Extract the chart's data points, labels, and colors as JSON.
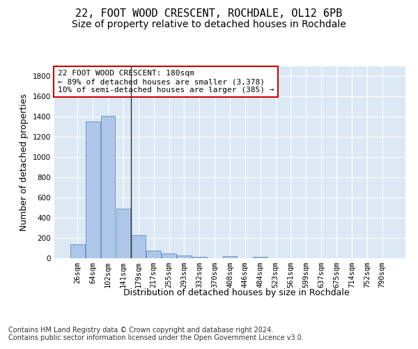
{
  "title_line1": "22, FOOT WOOD CRESCENT, ROCHDALE, OL12 6PB",
  "title_line2": "Size of property relative to detached houses in Rochdale",
  "xlabel": "Distribution of detached houses by size in Rochdale",
  "ylabel": "Number of detached properties",
  "categories": [
    "26sqm",
    "64sqm",
    "102sqm",
    "141sqm",
    "179sqm",
    "217sqm",
    "255sqm",
    "293sqm",
    "332sqm",
    "370sqm",
    "408sqm",
    "446sqm",
    "484sqm",
    "523sqm",
    "561sqm",
    "599sqm",
    "637sqm",
    "675sqm",
    "714sqm",
    "752sqm",
    "790sqm"
  ],
  "values": [
    135,
    1355,
    1410,
    490,
    225,
    75,
    45,
    28,
    13,
    0,
    18,
    0,
    14,
    0,
    0,
    0,
    0,
    0,
    0,
    0,
    0
  ],
  "bar_color": "#aec6e8",
  "bar_edge_color": "#5b8cc8",
  "highlight_bar_index": 4,
  "highlight_line_color": "#333333",
  "annotation_text": "22 FOOT WOOD CRESCENT: 180sqm\n← 89% of detached houses are smaller (3,378)\n10% of semi-detached houses are larger (385) →",
  "annotation_box_color": "#ffffff",
  "annotation_box_edge_color": "#cc0000",
  "ylim": [
    0,
    1900
  ],
  "yticks": [
    0,
    200,
    400,
    600,
    800,
    1000,
    1200,
    1400,
    1600,
    1800
  ],
  "background_color": "#dce9f5",
  "footer_text": "Contains HM Land Registry data © Crown copyright and database right 2024.\nContains public sector information licensed under the Open Government Licence v3.0.",
  "title_fontsize": 11,
  "subtitle_fontsize": 10,
  "axis_label_fontsize": 9,
  "tick_fontsize": 7.5,
  "annotation_fontsize": 8,
  "footer_fontsize": 7
}
